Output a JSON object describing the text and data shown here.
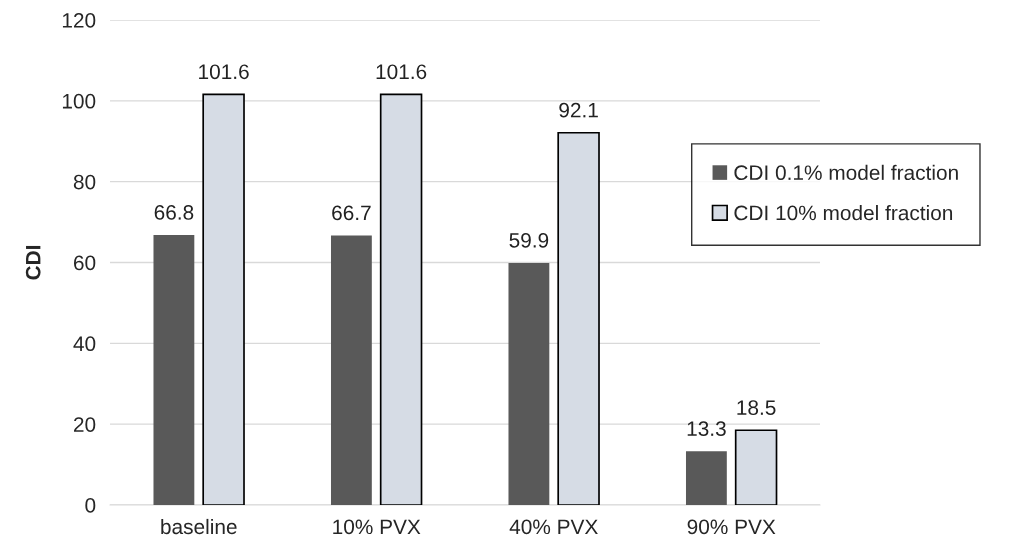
{
  "chart_data": {
    "type": "bar",
    "ylabel": "CDI",
    "categories": [
      "baseline",
      "10% PVX",
      "40% PVX",
      "90% PVX"
    ],
    "series": [
      {
        "name": "CDI 0.1% model fraction",
        "color": "#595959",
        "values": [
          66.8,
          66.7,
          59.9,
          13.3
        ]
      },
      {
        "name": "CDI 10% model fraction",
        "color": "#d6dce5",
        "values": [
          101.6,
          101.6,
          92.1,
          18.5
        ]
      }
    ],
    "ylim": [
      0,
      120
    ],
    "yticks": [
      0,
      20,
      40,
      60,
      80,
      100,
      120
    ],
    "grid": "y",
    "legend": "right",
    "data_labels": true
  }
}
